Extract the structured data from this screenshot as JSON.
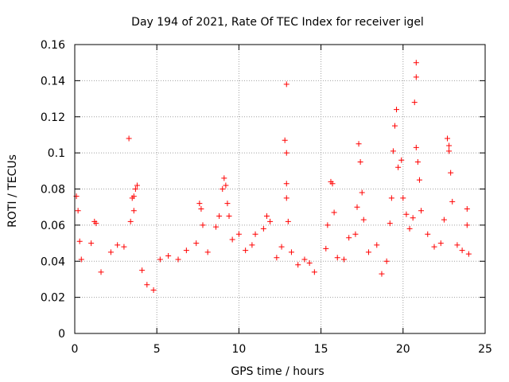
{
  "chart_data": {
    "type": "scatter",
    "title": "Day 194 of 2021, Rate Of TEC Index for receiver igel",
    "xlabel": "GPS time / hours",
    "ylabel": "ROTI / TECUs",
    "xlim": [
      0,
      25
    ],
    "ylim": [
      0,
      0.16
    ],
    "xticks": [
      0,
      5,
      10,
      15,
      20,
      25
    ],
    "xtick_labels": [
      "0",
      "5",
      "10",
      "15",
      "20",
      "25"
    ],
    "yticks": [
      0,
      0.02,
      0.04,
      0.06,
      0.08,
      0.1,
      0.12,
      0.14,
      0.16
    ],
    "ytick_labels": [
      "0",
      "0.02",
      "0.04",
      "0.06",
      "0.08",
      "0.1",
      "0.12",
      "0.14",
      "0.16"
    ],
    "grid": true,
    "marker": "+",
    "color": "#ff0000",
    "series": [
      {
        "name": "ROTI",
        "points": [
          [
            0.1,
            0.076
          ],
          [
            0.2,
            0.068
          ],
          [
            0.3,
            0.051
          ],
          [
            0.4,
            0.041
          ],
          [
            1.2,
            0.062
          ],
          [
            1.3,
            0.061
          ],
          [
            1.0,
            0.05
          ],
          [
            1.6,
            0.034
          ],
          [
            2.2,
            0.045
          ],
          [
            2.6,
            0.049
          ],
          [
            3.0,
            0.048
          ],
          [
            3.3,
            0.108
          ],
          [
            3.5,
            0.075
          ],
          [
            3.6,
            0.076
          ],
          [
            3.7,
            0.08
          ],
          [
            3.8,
            0.082
          ],
          [
            3.6,
            0.068
          ],
          [
            3.4,
            0.062
          ],
          [
            4.1,
            0.035
          ],
          [
            4.4,
            0.027
          ],
          [
            4.8,
            0.024
          ],
          [
            5.2,
            0.041
          ],
          [
            5.7,
            0.043
          ],
          [
            6.3,
            0.041
          ],
          [
            6.8,
            0.046
          ],
          [
            7.6,
            0.072
          ],
          [
            7.7,
            0.069
          ],
          [
            7.8,
            0.06
          ],
          [
            7.4,
            0.05
          ],
          [
            8.1,
            0.045
          ],
          [
            8.6,
            0.059
          ],
          [
            8.8,
            0.065
          ],
          [
            9.0,
            0.08
          ],
          [
            9.1,
            0.086
          ],
          [
            9.2,
            0.082
          ],
          [
            9.3,
            0.072
          ],
          [
            9.4,
            0.065
          ],
          [
            9.6,
            0.052
          ],
          [
            10.0,
            0.055
          ],
          [
            10.4,
            0.046
          ],
          [
            10.8,
            0.049
          ],
          [
            11.0,
            0.055
          ],
          [
            11.5,
            0.058
          ],
          [
            11.7,
            0.065
          ],
          [
            11.9,
            0.062
          ],
          [
            12.3,
            0.042
          ],
          [
            12.6,
            0.048
          ],
          [
            12.8,
            0.107
          ],
          [
            12.9,
            0.138
          ],
          [
            12.9,
            0.1
          ],
          [
            12.9,
            0.083
          ],
          [
            12.9,
            0.075
          ],
          [
            13.0,
            0.062
          ],
          [
            13.2,
            0.045
          ],
          [
            13.6,
            0.038
          ],
          [
            14.0,
            0.041
          ],
          [
            14.3,
            0.039
          ],
          [
            14.6,
            0.034
          ],
          [
            15.3,
            0.047
          ],
          [
            15.6,
            0.084
          ],
          [
            15.7,
            0.083
          ],
          [
            15.8,
            0.067
          ],
          [
            15.4,
            0.06
          ],
          [
            16.0,
            0.042
          ],
          [
            16.4,
            0.041
          ],
          [
            16.7,
            0.053
          ],
          [
            17.1,
            0.055
          ],
          [
            17.2,
            0.07
          ],
          [
            17.3,
            0.105
          ],
          [
            17.4,
            0.095
          ],
          [
            17.5,
            0.078
          ],
          [
            17.6,
            0.063
          ],
          [
            17.9,
            0.045
          ],
          [
            18.4,
            0.049
          ],
          [
            18.7,
            0.033
          ],
          [
            19.0,
            0.04
          ],
          [
            19.2,
            0.061
          ],
          [
            19.3,
            0.075
          ],
          [
            19.4,
            0.101
          ],
          [
            19.5,
            0.115
          ],
          [
            19.6,
            0.124
          ],
          [
            19.7,
            0.092
          ],
          [
            19.9,
            0.096
          ],
          [
            20.0,
            0.075
          ],
          [
            20.2,
            0.066
          ],
          [
            20.4,
            0.058
          ],
          [
            20.6,
            0.064
          ],
          [
            20.7,
            0.128
          ],
          [
            20.8,
            0.15
          ],
          [
            20.8,
            0.142
          ],
          [
            20.8,
            0.103
          ],
          [
            20.9,
            0.095
          ],
          [
            21.0,
            0.085
          ],
          [
            21.1,
            0.068
          ],
          [
            21.5,
            0.055
          ],
          [
            21.9,
            0.048
          ],
          [
            22.3,
            0.05
          ],
          [
            22.5,
            0.063
          ],
          [
            22.7,
            0.108
          ],
          [
            22.8,
            0.104
          ],
          [
            22.8,
            0.101
          ],
          [
            22.9,
            0.089
          ],
          [
            23.0,
            0.073
          ],
          [
            23.3,
            0.049
          ],
          [
            23.6,
            0.046
          ],
          [
            23.9,
            0.069
          ],
          [
            23.9,
            0.06
          ],
          [
            24.0,
            0.044
          ]
        ]
      }
    ]
  }
}
